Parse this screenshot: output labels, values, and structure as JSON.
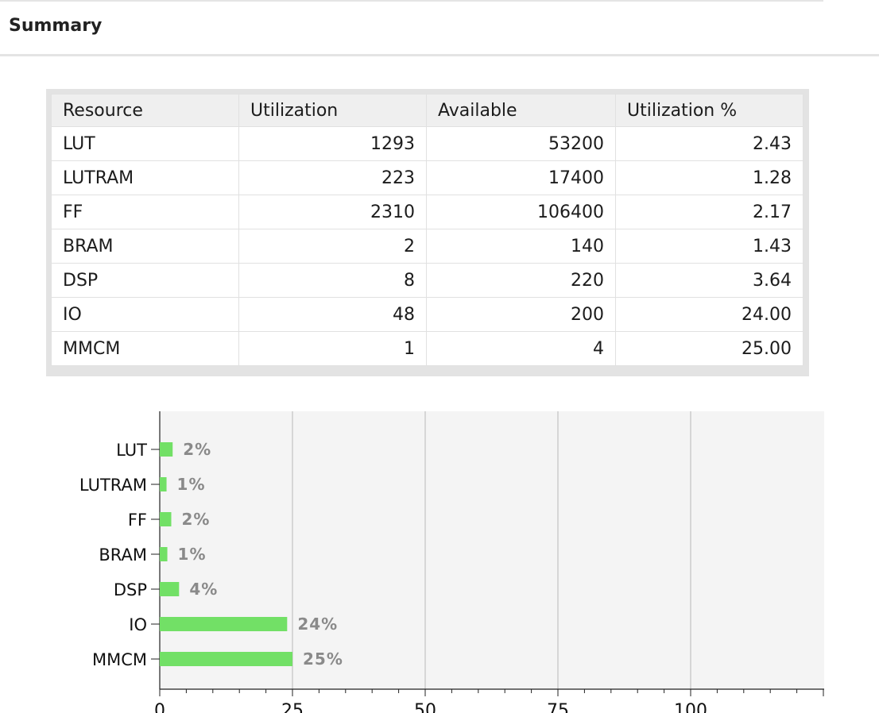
{
  "header": {
    "title": "Summary"
  },
  "table": {
    "columns": [
      "Resource",
      "Utilization",
      "Available",
      "Utilization %"
    ],
    "rows": [
      [
        "LUT",
        "1293",
        "53200",
        "2.43"
      ],
      [
        "LUTRAM",
        "223",
        "17400",
        "1.28"
      ],
      [
        "FF",
        "2310",
        "106400",
        "2.17"
      ],
      [
        "BRAM",
        "2",
        "140",
        "1.43"
      ],
      [
        "DSP",
        "8",
        "220",
        "3.64"
      ],
      [
        "IO",
        "48",
        "200",
        "24.00"
      ],
      [
        "MMCM",
        "1",
        "4",
        "25.00"
      ]
    ]
  },
  "colors": {
    "bar": "#72e066",
    "plot_bg": "#f4f4f4",
    "grid": "#b9b9b9",
    "label_gray": "#8a8a8a"
  },
  "chart_data": {
    "type": "bar",
    "orientation": "horizontal",
    "categories": [
      "LUT",
      "LUTRAM",
      "FF",
      "BRAM",
      "DSP",
      "IO",
      "MMCM"
    ],
    "values": [
      2.43,
      1.28,
      2.17,
      1.43,
      3.64,
      24.0,
      25.0
    ],
    "data_labels": [
      "2%",
      "1%",
      "2%",
      "1%",
      "4%",
      "24%",
      "25%"
    ],
    "x_ticks": [
      "0",
      "25",
      "50",
      "75",
      "100"
    ],
    "xlim": [
      0,
      125
    ],
    "grid": true
  }
}
